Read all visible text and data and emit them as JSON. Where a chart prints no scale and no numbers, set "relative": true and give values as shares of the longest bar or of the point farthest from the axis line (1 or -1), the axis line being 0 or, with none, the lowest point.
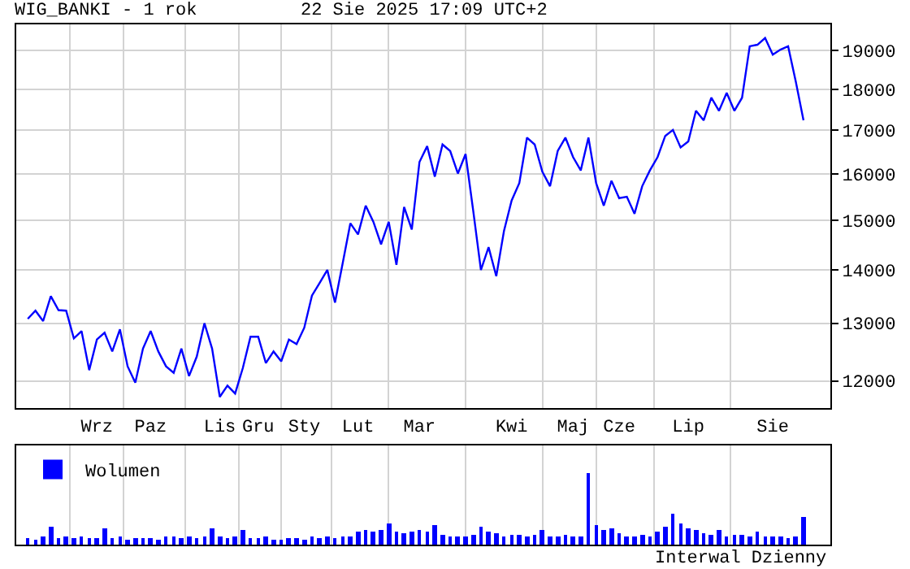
{
  "chart_data": [
    {
      "type": "line",
      "title": "WIG_BANKI - 1 rok",
      "subtitle": "22 Sie 2025 17:09 UTC+2",
      "categories": [
        null,
        null,
        null,
        null,
        null,
        null,
        null,
        null,
        null,
        "Wrz",
        null,
        null,
        null,
        null,
        null,
        null,
        "Paz",
        null,
        null,
        null,
        null,
        null,
        null,
        null,
        null,
        "Lis",
        null,
        null,
        null,
        null,
        "Gru",
        null,
        null,
        null,
        null,
        null,
        "Sty",
        null,
        null,
        null,
        null,
        null,
        null,
        "Lut",
        null,
        null,
        null,
        null,
        null,
        null,
        null,
        "Mar",
        null,
        null,
        null,
        null,
        null,
        null,
        null,
        null,
        null,
        null,
        null,
        "Kwi",
        null,
        null,
        null,
        null,
        null,
        null,
        null,
        "Maj",
        null,
        null,
        null,
        null,
        null,
        "Cze",
        null,
        null,
        null,
        null,
        null,
        null,
        null,
        null,
        "Lip",
        null,
        null,
        null,
        null,
        null,
        null,
        null,
        null,
        null,
        null,
        "Sie",
        null,
        null,
        null,
        null
      ],
      "series": [
        {
          "color": "#0000ff",
          "values": [
            13080,
            13230,
            13040,
            13500,
            13240,
            13230,
            12730,
            12860,
            12180,
            12710,
            12830,
            12500,
            12890,
            12245,
            11970,
            12550,
            12860,
            12500,
            12245,
            12135,
            12550,
            12080,
            12410,
            13000,
            12550,
            11735,
            11920,
            11790,
            12215,
            12760,
            12760,
            12300,
            12500,
            12330,
            12710,
            12630,
            12920,
            13510,
            13750,
            14000,
            13380,
            14130,
            14940,
            14710,
            15310,
            14970,
            14510,
            14970,
            14100,
            15280,
            14810,
            16270,
            16630,
            15940,
            16670,
            16520,
            16010,
            16450,
            15200,
            14000,
            14450,
            13880,
            14780,
            15420,
            15800,
            16830,
            16670,
            16050,
            15730,
            16520,
            16830,
            16380,
            16080,
            16830,
            15800,
            15310,
            15850,
            15470,
            15500,
            15140,
            15730,
            16080,
            16380,
            16870,
            17010,
            16600,
            16740,
            17470,
            17240,
            17790,
            17470,
            17910,
            17470,
            17790,
            19110,
            19150,
            19330,
            18890,
            19020,
            19110,
            18190,
            17240
          ]
        }
      ],
      "ylim": [
        11550,
        19700
      ],
      "yticks": [
        12000,
        13000,
        14000,
        15000,
        16000,
        17000,
        18000,
        19000
      ],
      "log": true,
      "grid": true
    },
    {
      "type": "bar",
      "relative": true,
      "grid": "x",
      "legend": "top left",
      "annotations": [
        "Interwal Dzienny"
      ],
      "categories": [
        null,
        null,
        null,
        null,
        null,
        null,
        null,
        null,
        null,
        null,
        null,
        null,
        null,
        null,
        null,
        null,
        null,
        null,
        null,
        null,
        null,
        null,
        null,
        null,
        null,
        null,
        null,
        null,
        null,
        null,
        null,
        null,
        null,
        null,
        null,
        null,
        null,
        null,
        null,
        null,
        null,
        null,
        null,
        null,
        null,
        null,
        null,
        null,
        null,
        null,
        null,
        null,
        null,
        null,
        null,
        null,
        null,
        null,
        null,
        null,
        null,
        null,
        null,
        null,
        null,
        null,
        null,
        null,
        null,
        null,
        null,
        null,
        null,
        null,
        null,
        null,
        null,
        null,
        null,
        null,
        null,
        null,
        null,
        null,
        null,
        null,
        null,
        null,
        null,
        null,
        null,
        null,
        null,
        null,
        null,
        null,
        null,
        null,
        null,
        null,
        null,
        null
      ],
      "series": [
        {
          "name": "Wolumen",
          "color": "#0000ff",
          "values": [
            0.08,
            0.06,
            0.1,
            0.25,
            0.08,
            0.1,
            0.08,
            0.12,
            0.08,
            0.09,
            0.22,
            0.08,
            0.1,
            0.07,
            0.08,
            0.09,
            0.08,
            0.07,
            0.1,
            0.12,
            0.08,
            0.1,
            0.09,
            0.12,
            0.22,
            0.1,
            0.09,
            0.12,
            0.2,
            0.09,
            0.08,
            0.1,
            0.07,
            0.06,
            0.08,
            0.09,
            0.07,
            0.1,
            0.08,
            0.12,
            0.09,
            0.1,
            0.12,
            0.18,
            0.2,
            0.18,
            0.2,
            0.3,
            0.17,
            0.16,
            0.17,
            0.2,
            0.18,
            0.28,
            0.14,
            0.12,
            0.1,
            0.12,
            0.14,
            0.25,
            0.18,
            0.15,
            0.12,
            0.14,
            0.13,
            0.12,
            0.14,
            0.2,
            0.12,
            0.1,
            0.14,
            0.12,
            0.12,
            1.0,
            0.28,
            0.2,
            0.22,
            0.16,
            0.12,
            0.1,
            0.13,
            0.12,
            0.18,
            0.25,
            0.43,
            0.3,
            0.22,
            0.2,
            0.15,
            0.14,
            0.2,
            0.12,
            0.14,
            0.13,
            0.12,
            0.18,
            0.12,
            0.1,
            0.12,
            0.09,
            0.1,
            0.39
          ]
        }
      ]
    }
  ]
}
